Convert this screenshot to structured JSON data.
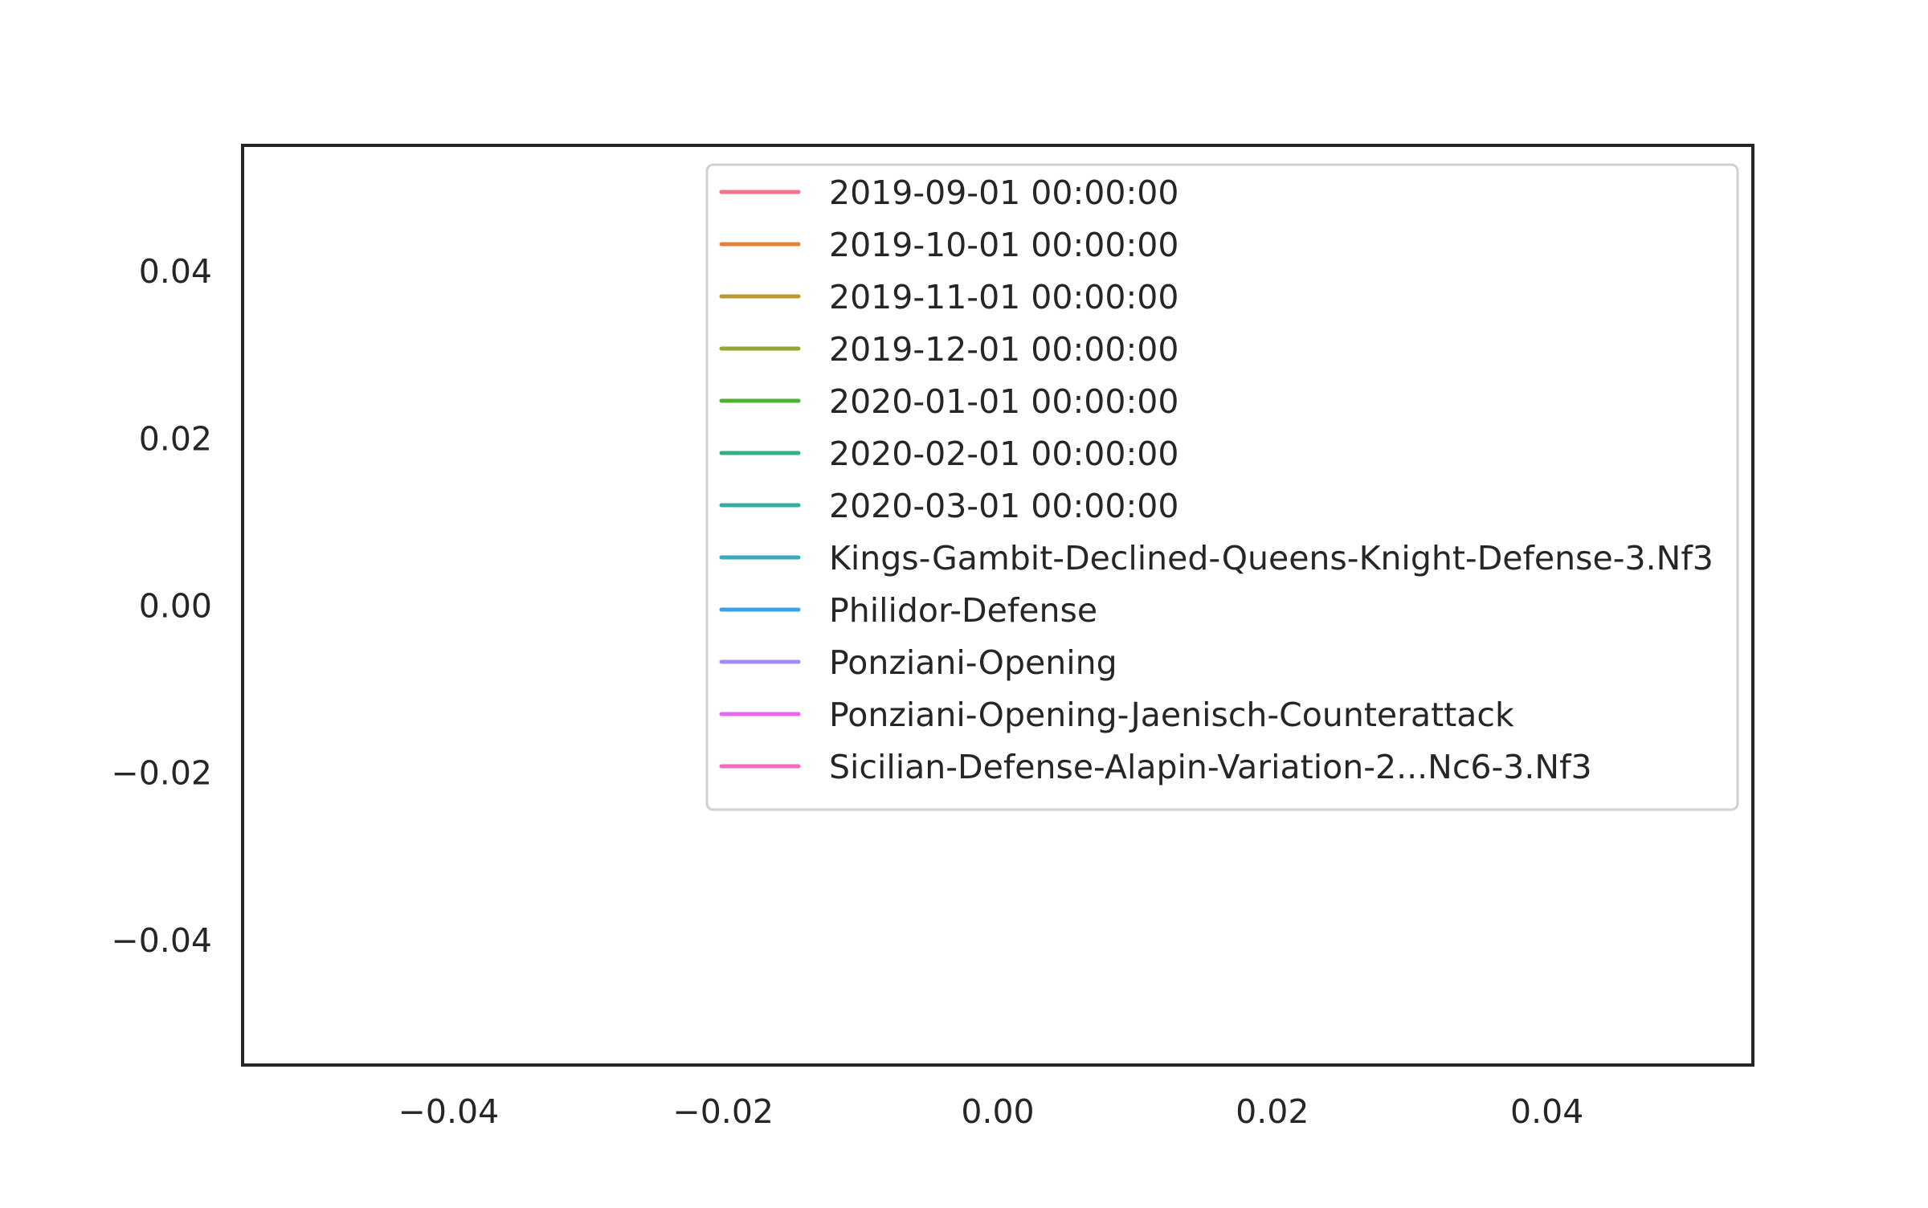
{
  "chart_data": {
    "type": "line",
    "title": "",
    "xlabel": "",
    "ylabel": "",
    "xlim": [
      -0.055,
      0.055
    ],
    "ylim": [
      -0.055,
      0.055
    ],
    "x_ticks": [
      -0.04,
      -0.02,
      0.0,
      0.02,
      0.04
    ],
    "y_ticks": [
      0.04,
      0.02,
      0.0,
      -0.02,
      -0.04
    ],
    "x_tick_labels": [
      "−0.04",
      "−0.02",
      "0.00",
      "0.02",
      "0.04"
    ],
    "y_tick_labels": [
      "0.04",
      "0.02",
      "0.00",
      "−0.02",
      "−0.04"
    ],
    "grid": false,
    "legend_position": "upper right",
    "series": [
      {
        "name": "2019-09-01 00:00:00",
        "color": "#f77189",
        "x": [],
        "y": []
      },
      {
        "name": "2019-10-01 00:00:00",
        "color": "#e5823a",
        "x": [],
        "y": []
      },
      {
        "name": "2019-11-01 00:00:00",
        "color": "#bb9832",
        "x": [],
        "y": []
      },
      {
        "name": "2019-12-01 00:00:00",
        "color": "#97a431",
        "x": [],
        "y": []
      },
      {
        "name": "2020-01-01 00:00:00",
        "color": "#50b131",
        "x": [],
        "y": []
      },
      {
        "name": "2020-02-01 00:00:00",
        "color": "#34af84",
        "x": [],
        "y": []
      },
      {
        "name": "2020-03-01 00:00:00",
        "color": "#36ada4",
        "x": [],
        "y": []
      },
      {
        "name": "Kings-Gambit-Declined-Queens-Knight-Defense-3.Nf3",
        "color": "#38a9c5",
        "x": [],
        "y": []
      },
      {
        "name": "Philidor-Defense",
        "color": "#3ba3ec",
        "x": [],
        "y": []
      },
      {
        "name": "Ponziani-Opening",
        "color": "#a48cf4",
        "x": [],
        "y": []
      },
      {
        "name": "Ponziani-Opening-Jaenisch-Counterattack",
        "color": "#e866f4",
        "x": [],
        "y": []
      },
      {
        "name": "Sicilian-Defense-Alapin-Variation-2...Nc6-3.Nf3",
        "color": "#f668c2",
        "x": [],
        "y": []
      }
    ]
  }
}
